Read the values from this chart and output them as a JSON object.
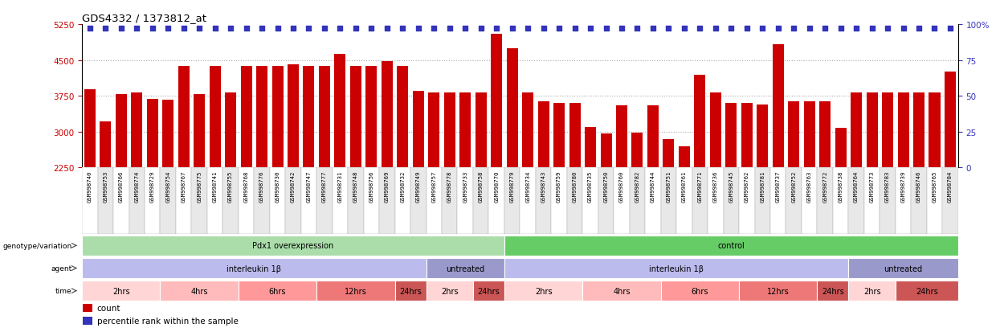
{
  "title": "GDS4332 / 1373812_at",
  "samples": [
    "GSM998740",
    "GSM998753",
    "GSM998766",
    "GSM998774",
    "GSM998729",
    "GSM998754",
    "GSM998767",
    "GSM998775",
    "GSM998741",
    "GSM998755",
    "GSM998768",
    "GSM998776",
    "GSM998730",
    "GSM998742",
    "GSM998747",
    "GSM998777",
    "GSM998731",
    "GSM998748",
    "GSM998756",
    "GSM998769",
    "GSM998732",
    "GSM998749",
    "GSM998757",
    "GSM998778",
    "GSM998733",
    "GSM998758",
    "GSM998770",
    "GSM998779",
    "GSM998734",
    "GSM998743",
    "GSM998759",
    "GSM998780",
    "GSM998735",
    "GSM998750",
    "GSM998760",
    "GSM998782",
    "GSM998744",
    "GSM998751",
    "GSM998761",
    "GSM998771",
    "GSM998736",
    "GSM998745",
    "GSM998762",
    "GSM998781",
    "GSM998737",
    "GSM998752",
    "GSM998763",
    "GSM998772",
    "GSM998738",
    "GSM998764",
    "GSM998773",
    "GSM998783",
    "GSM998739",
    "GSM998746",
    "GSM998765",
    "GSM998784"
  ],
  "bar_values": [
    3900,
    3220,
    3800,
    3820,
    3690,
    3680,
    4380,
    3790,
    4380,
    3820,
    4380,
    4380,
    4380,
    4420,
    4380,
    4380,
    4640,
    4380,
    4380,
    4480,
    4380,
    3860,
    3820,
    3820,
    3820,
    3820,
    5060,
    4750,
    3820,
    3640,
    3610,
    3610,
    3100,
    2960,
    3550,
    2980,
    3560,
    2840,
    2700,
    4200,
    3820,
    3600,
    3600,
    3580,
    4830,
    3640,
    3640,
    3640,
    3080,
    3820,
    3820,
    3820,
    3820,
    3820,
    3820,
    4260
  ],
  "ymin": 2250,
  "ymax": 5250,
  "yticks_left": [
    2250,
    3000,
    3750,
    4500,
    5250
  ],
  "yticks_right": [
    0,
    25,
    50,
    75,
    100
  ],
  "yticks_right_labels": [
    "0",
    "25",
    "50",
    "75",
    "100%"
  ],
  "bar_color": "#CC0000",
  "percentile_color": "#3333BB",
  "gridline_color": "#AAAAAA",
  "bg_color": "#FFFFFF",
  "xtick_bg_even": "#FFFFFF",
  "xtick_bg_odd": "#E8E8E8",
  "genotype_groups": [
    {
      "text": "Pdx1 overexpression",
      "start": 0,
      "end": 27,
      "color": "#AADDAA"
    },
    {
      "text": "control",
      "start": 27,
      "end": 56,
      "color": "#66CC66"
    }
  ],
  "agent_groups": [
    {
      "text": "interleukin 1β",
      "start": 0,
      "end": 22,
      "color": "#BBBBEE"
    },
    {
      "text": "untreated",
      "start": 22,
      "end": 27,
      "color": "#9999CC"
    },
    {
      "text": "interleukin 1β",
      "start": 27,
      "end": 49,
      "color": "#BBBBEE"
    },
    {
      "text": "untreated",
      "start": 49,
      "end": 56,
      "color": "#9999CC"
    }
  ],
  "time_groups": [
    {
      "text": "2hrs",
      "start": 0,
      "end": 5,
      "color": "#FFD5D5"
    },
    {
      "text": "4hrs",
      "start": 5,
      "end": 10,
      "color": "#FFBBBB"
    },
    {
      "text": "6hrs",
      "start": 10,
      "end": 15,
      "color": "#FF9999"
    },
    {
      "text": "12hrs",
      "start": 15,
      "end": 20,
      "color": "#EE7777"
    },
    {
      "text": "24hrs",
      "start": 20,
      "end": 22,
      "color": "#CC5555"
    },
    {
      "text": "2hrs",
      "start": 22,
      "end": 25,
      "color": "#FFD5D5"
    },
    {
      "text": "24hrs",
      "start": 25,
      "end": 27,
      "color": "#CC5555"
    },
    {
      "text": "2hrs",
      "start": 27,
      "end": 32,
      "color": "#FFD5D5"
    },
    {
      "text": "4hrs",
      "start": 32,
      "end": 37,
      "color": "#FFBBBB"
    },
    {
      "text": "6hrs",
      "start": 37,
      "end": 42,
      "color": "#FF9999"
    },
    {
      "text": "12hrs",
      "start": 42,
      "end": 47,
      "color": "#EE7777"
    },
    {
      "text": "24hrs",
      "start": 47,
      "end": 49,
      "color": "#CC5555"
    },
    {
      "text": "2hrs",
      "start": 49,
      "end": 52,
      "color": "#FFD5D5"
    },
    {
      "text": "24hrs",
      "start": 52,
      "end": 56,
      "color": "#CC5555"
    }
  ],
  "legend": [
    {
      "label": "count",
      "color": "#CC0000"
    },
    {
      "label": "percentile rank within the sample",
      "color": "#3333BB"
    }
  ],
  "grid_lines": [
    3000,
    3750,
    4500
  ]
}
